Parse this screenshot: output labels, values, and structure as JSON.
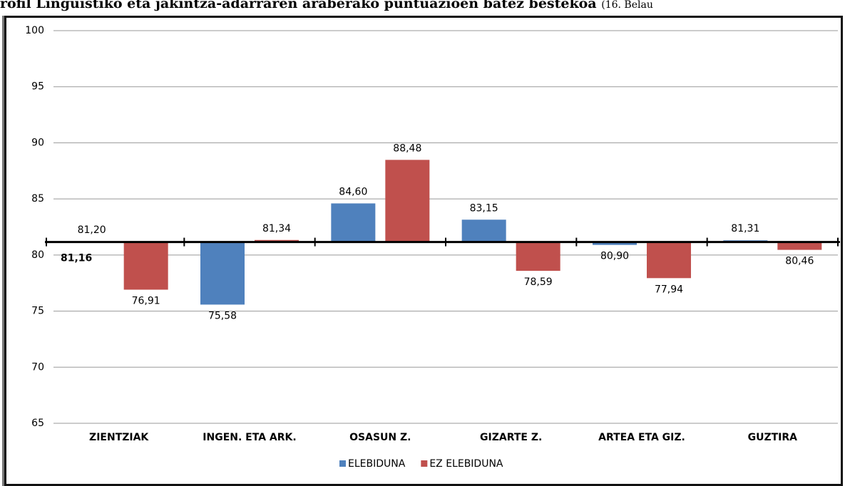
{
  "chart_data": {
    "type": "bar",
    "title": "rofil Linguistiko eta jakintza-adarraren araberako puntuazioen batez bestekoa",
    "subtitle": "(16. Belau",
    "categories": [
      "ZIENTZIAK",
      "INGEN. ETA ARK.",
      "OSASUN Z.",
      "GIZARTE Z.",
      "ARTEA ETA GIZ.",
      "GUZTIRA"
    ],
    "baseline": 81.16,
    "baseline_label": "81,16",
    "series": [
      {
        "name": "ELEBIDUNA",
        "color": "#4f81bd",
        "values": [
          81.2,
          75.58,
          84.6,
          83.15,
          80.9,
          81.31
        ],
        "value_labels": [
          "81,20",
          "75,58",
          "84,60",
          "83,15",
          "80,90",
          "81,31"
        ]
      },
      {
        "name": "EZ ELEBIDUNA",
        "color": "#c0504d",
        "values": [
          76.91,
          81.34,
          88.48,
          78.59,
          77.94,
          80.46
        ],
        "value_labels": [
          "76,91",
          "81,34",
          "88,48",
          "78,59",
          "77,94",
          "80,46"
        ]
      }
    ],
    "ylim": [
      65,
      100
    ],
    "yticks": [
      65,
      70,
      75,
      80,
      85,
      90,
      95,
      100
    ],
    "grid": true,
    "legend": "bottom"
  }
}
